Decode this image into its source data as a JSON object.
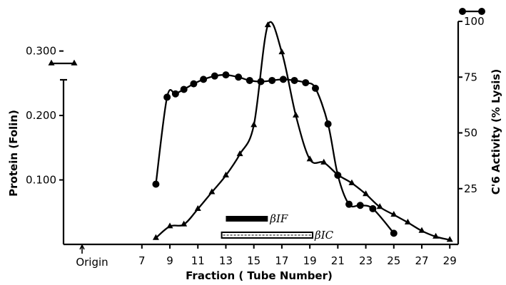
{
  "chart_data": {
    "type": "line",
    "xlabel": "Fraction ( Tube Number)",
    "x_ticks": [
      "7",
      "9",
      "11",
      "13",
      "15",
      "17",
      "19",
      "21",
      "23",
      "25",
      "27",
      "29"
    ],
    "x_ticks_raw": [
      7,
      9,
      11,
      13,
      15,
      17,
      19,
      21,
      23,
      25,
      27,
      29
    ],
    "origin_label": "Origin",
    "xlim": [
      1.4,
      29.6
    ],
    "y_left": {
      "label": "Protein (Folin)",
      "ticks": [
        "0.100",
        "0.200",
        "0.300"
      ],
      "ticks_raw": [
        0.1,
        0.2,
        0.3
      ],
      "ylim": [
        0.0,
        0.346
      ],
      "legend_marker": "triangle"
    },
    "y_right": {
      "label": "C'6 Activity (% Lysis)",
      "ticks": [
        "25",
        "50",
        "75",
        "100"
      ],
      "ticks_raw": [
        25,
        50,
        75,
        100
      ],
      "ylim": [
        0,
        100
      ],
      "legend_marker": "circle"
    },
    "series": [
      {
        "axis": "left",
        "marker": "triangle",
        "x": [
          8,
          9,
          10,
          11,
          12,
          13,
          14,
          15,
          16,
          17,
          18,
          19,
          20,
          21,
          22,
          23,
          24,
          25,
          26,
          27,
          28,
          29
        ],
        "y": [
          0.01,
          0.028,
          0.031,
          0.055,
          0.081,
          0.107,
          0.14,
          0.185,
          0.34,
          0.298,
          0.2,
          0.132,
          0.127,
          0.108,
          0.095,
          0.078,
          0.058,
          0.046,
          0.034,
          0.021,
          0.012,
          0.007
        ]
      },
      {
        "axis": "right",
        "marker": "circle",
        "x": [
          8,
          8.8,
          9.4,
          10,
          10.7,
          11.4,
          12.2,
          13,
          13.9,
          14.7,
          15.5,
          16.3,
          17.1,
          17.9,
          18.7,
          19.4,
          20.3,
          21,
          21.8,
          22.6,
          23.5,
          25
        ],
        "y": [
          27,
          66,
          67.5,
          69.5,
          72,
          74,
          75.5,
          76,
          75,
          73.5,
          73,
          73.5,
          74,
          73.5,
          72.5,
          70,
          54,
          31,
          18,
          17.5,
          16,
          5
        ]
      }
    ],
    "bands": [
      {
        "label": "βIF",
        "x_range": [
          13,
          16
        ],
        "style": "solid"
      },
      {
        "label": "βIC",
        "x_range": [
          12.7,
          19.2
        ],
        "style": "open"
      }
    ]
  }
}
